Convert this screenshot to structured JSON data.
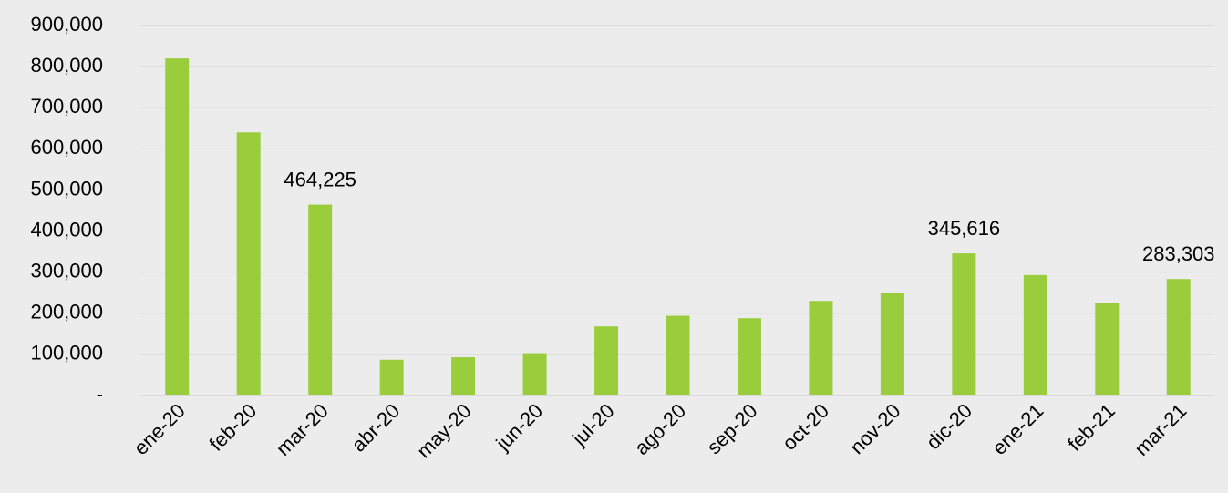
{
  "chart_data": {
    "type": "bar",
    "categories": [
      "ene-20",
      "feb-20",
      "mar-20",
      "abr-20",
      "may-20",
      "jun-20",
      "jul-20",
      "ago-20",
      "sep-20",
      "oct-20",
      "nov-20",
      "dic-20",
      "ene-21",
      "feb-21",
      "mar-21"
    ],
    "values": [
      820000,
      640000,
      464225,
      87000,
      93000,
      103000,
      168000,
      194000,
      188000,
      230000,
      249000,
      345616,
      293000,
      226000,
      283303
    ],
    "value_labels": [
      null,
      null,
      "464,225",
      null,
      null,
      null,
      null,
      null,
      null,
      null,
      null,
      "345,616",
      null,
      null,
      "283,303"
    ],
    "color": "#9acd3c",
    "ylim": [
      0,
      900000
    ],
    "yticks": [
      {
        "value": 0,
        "label": "-"
      },
      {
        "value": 100000,
        "label": "100,000"
      },
      {
        "value": 200000,
        "label": "200,000"
      },
      {
        "value": 300000,
        "label": "300,000"
      },
      {
        "value": 400000,
        "label": "400,000"
      },
      {
        "value": 500000,
        "label": "500,000"
      },
      {
        "value": 600000,
        "label": "600,000"
      },
      {
        "value": 700000,
        "label": "700,000"
      },
      {
        "value": 800000,
        "label": "800,000"
      },
      {
        "value": 900000,
        "label": "900,000"
      }
    ],
    "grid": true
  }
}
